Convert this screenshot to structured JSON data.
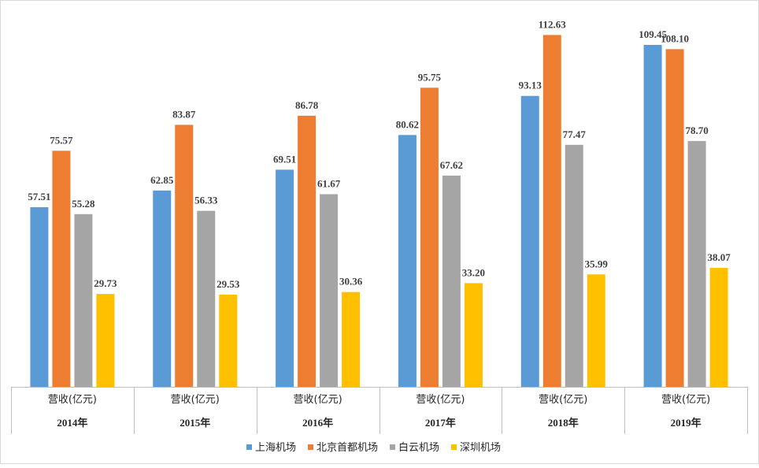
{
  "chart_data": {
    "type": "bar",
    "category_label": "营收(亿元)",
    "categories": [
      "2014年",
      "2015年",
      "2016年",
      "2017年",
      "2018年",
      "2019年"
    ],
    "series": [
      {
        "name": "上海机场",
        "color": "#5B9BD5",
        "values": [
          57.51,
          62.85,
          69.51,
          80.62,
          93.13,
          109.45
        ]
      },
      {
        "name": "北京首都机场",
        "color": "#ED7D31",
        "values": [
          75.57,
          83.87,
          86.78,
          95.75,
          112.63,
          108.1
        ]
      },
      {
        "name": "白云机场",
        "color": "#A5A5A5",
        "values": [
          55.28,
          56.33,
          61.67,
          67.62,
          77.47,
          78.7
        ]
      },
      {
        "name": "深圳机场",
        "color": "#FFC000",
        "values": [
          29.73,
          29.53,
          30.36,
          33.2,
          35.99,
          38.07
        ]
      }
    ],
    "value_labels": [
      [
        "57.51",
        "75.57",
        "55.28",
        "29.73"
      ],
      [
        "62.85",
        "83.87",
        "56.33",
        "29.53"
      ],
      [
        "69.51",
        "86.78",
        "61.67",
        "30.36"
      ],
      [
        "80.62",
        "95.75",
        "67.62",
        "33.20"
      ],
      [
        "93.13",
        "112.63",
        "77.47",
        "35.99"
      ],
      [
        "109.45",
        "108.10",
        "78.70",
        "38.07"
      ]
    ],
    "ylim": [
      0,
      115
    ],
    "grid": false,
    "legend_position": "bottom"
  }
}
